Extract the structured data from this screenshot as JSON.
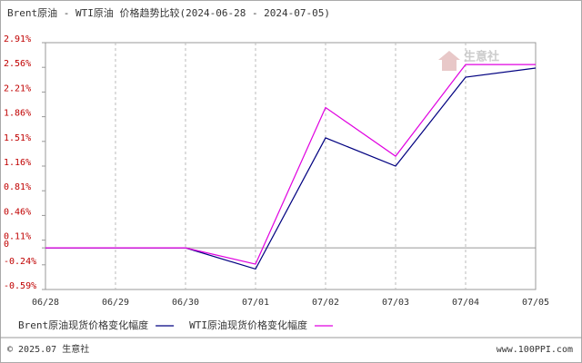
{
  "chart_data": {
    "type": "line",
    "title": "Brent原油 - WTI原油 价格趋势比较(2024-06-28 - 2024-07-05)",
    "watermark": "生意社",
    "categories": [
      "06/28",
      "06/29",
      "06/30",
      "07/01",
      "07/02",
      "07/03",
      "07/04",
      "07/05"
    ],
    "series": [
      {
        "name": "Brent原油现货价格变化幅度",
        "color": "#000080",
        "values": [
          0,
          0,
          0,
          -0.3,
          1.56,
          1.16,
          2.42,
          2.55
        ]
      },
      {
        "name": "WTI原油现货价格变化幅度",
        "color": "#e000e0",
        "values": [
          0,
          0,
          0,
          -0.23,
          1.99,
          1.3,
          2.6,
          2.6
        ]
      }
    ],
    "ylim": [
      -0.59,
      2.91
    ],
    "yticks": [
      {
        "value": 2.91,
        "label": "2.91%"
      },
      {
        "value": 2.56,
        "label": "2.56%"
      },
      {
        "value": 2.21,
        "label": "2.21%"
      },
      {
        "value": 1.86,
        "label": "1.86%"
      },
      {
        "value": 1.51,
        "label": "1.51%"
      },
      {
        "value": 1.16,
        "label": "1.16%"
      },
      {
        "value": 0.81,
        "label": "0.81%"
      },
      {
        "value": 0.46,
        "label": "0.46%"
      },
      {
        "value": 0.11,
        "label": "0.11%"
      },
      0,
      {
        "value": -0.24,
        "label": "-0.24%"
      },
      {
        "value": -0.59,
        "label": "-0.59%"
      }
    ],
    "grid": true
  },
  "footer": {
    "copyright": "© 2025.07 生意社",
    "site": "www.100PPI.com"
  }
}
